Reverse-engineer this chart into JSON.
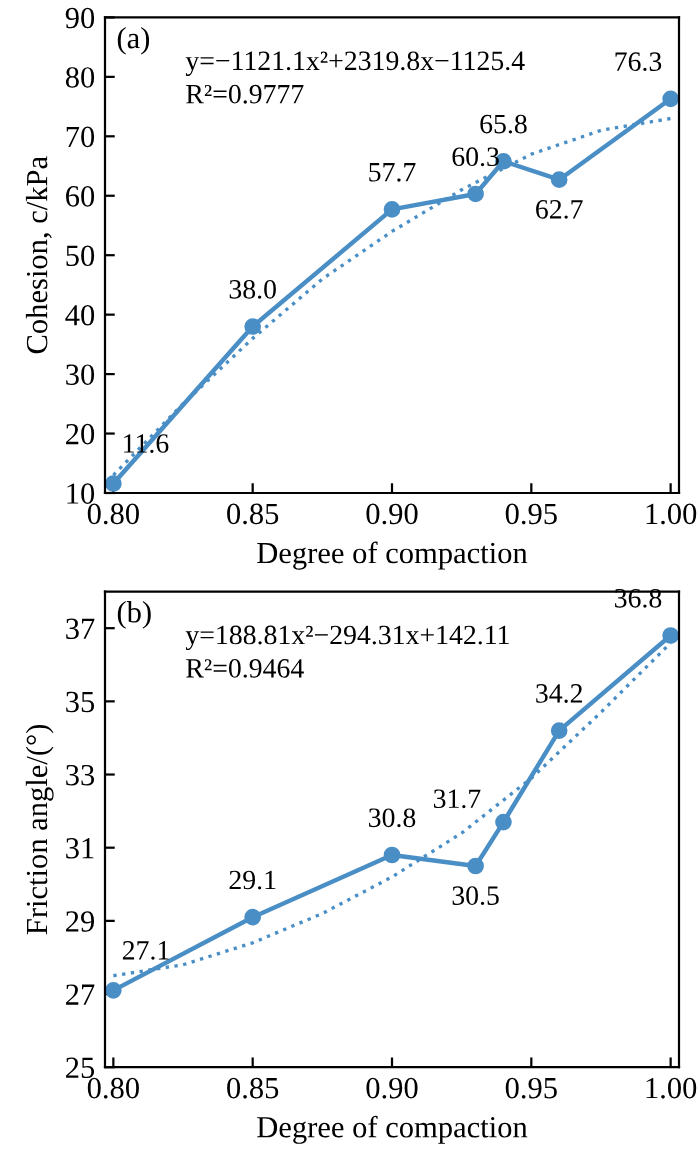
{
  "chart_data": [
    {
      "type": "line",
      "title": "(a)",
      "xlabel": "Degree of compaction",
      "ylabel": "Cohesion, c/kPa",
      "annotations": [
        "y=−1121.1x²+2319.8x−1125.4",
        "R²=0.9777"
      ],
      "xlim": [
        0.797,
        1.003
      ],
      "xticks": [
        {
          "value": 0.8,
          "label": "0.80"
        },
        {
          "value": 0.85,
          "label": "0.85"
        },
        {
          "value": 0.9,
          "label": "0.90"
        },
        {
          "value": 0.95,
          "label": "0.95"
        },
        {
          "value": 1.0,
          "label": "1.00"
        }
      ],
      "ylim": [
        10,
        90
      ],
      "yticks": [
        10,
        20,
        30,
        40,
        50,
        60,
        70,
        80,
        90
      ],
      "grid": false,
      "legend": false,
      "series": [
        {
          "x": [
            0.8,
            0.85,
            0.9,
            0.93,
            0.94,
            0.96,
            1.0
          ],
          "values": [
            11.6,
            38.0,
            57.7,
            60.3,
            65.8,
            62.7,
            76.3
          ],
          "value_labels": [
            "11.6",
            "38.0",
            "57.7",
            "60.3",
            "65.8",
            "62.7",
            "76.3"
          ],
          "color": "#4a8ec6",
          "marker": "circle",
          "line_style": "solid"
        },
        {
          "x": [
            0.8,
            0.825,
            0.85,
            0.875,
            0.9,
            0.925,
            0.95,
            0.975,
            1.0
          ],
          "values": [
            13,
            25,
            36,
            46,
            54,
            61,
            67,
            71,
            73
          ],
          "color": "#4a8ec6",
          "marker": "none",
          "line_style": "dotted"
        }
      ]
    },
    {
      "type": "line",
      "title": "(b)",
      "xlabel": "Degree of compaction",
      "ylabel": "Friction angle/(°)",
      "annotations": [
        "y=188.81x²−294.31x+142.11",
        "R²=0.9464"
      ],
      "xlim": [
        0.797,
        1.003
      ],
      "xticks": [
        {
          "value": 0.8,
          "label": "0.80"
        },
        {
          "value": 0.85,
          "label": "0.85"
        },
        {
          "value": 0.9,
          "label": "0.90"
        },
        {
          "value": 0.95,
          "label": "0.95"
        },
        {
          "value": 1.0,
          "label": "1.00"
        }
      ],
      "ylim": [
        25,
        38
      ],
      "yticks": [
        25,
        27,
        29,
        31,
        33,
        35,
        37
      ],
      "grid": false,
      "legend": false,
      "series": [
        {
          "x": [
            0.8,
            0.85,
            0.9,
            0.93,
            0.94,
            0.96,
            1.0
          ],
          "values": [
            27.1,
            29.1,
            30.8,
            30.5,
            31.7,
            34.2,
            36.8
          ],
          "value_labels": [
            "27.1",
            "29.1",
            "30.8",
            "30.5",
            "31.7",
            "34.2",
            "36.8"
          ],
          "color": "#4a8ec6",
          "marker": "circle",
          "line_style": "solid"
        },
        {
          "x": [
            0.8,
            0.825,
            0.85,
            0.875,
            0.9,
            0.925,
            0.95,
            0.975,
            1.0
          ],
          "values": [
            27.5,
            27.8,
            28.4,
            29.2,
            30.2,
            31.4,
            32.9,
            34.7,
            36.6
          ],
          "color": "#4a8ec6",
          "marker": "none",
          "line_style": "dotted"
        }
      ]
    }
  ]
}
